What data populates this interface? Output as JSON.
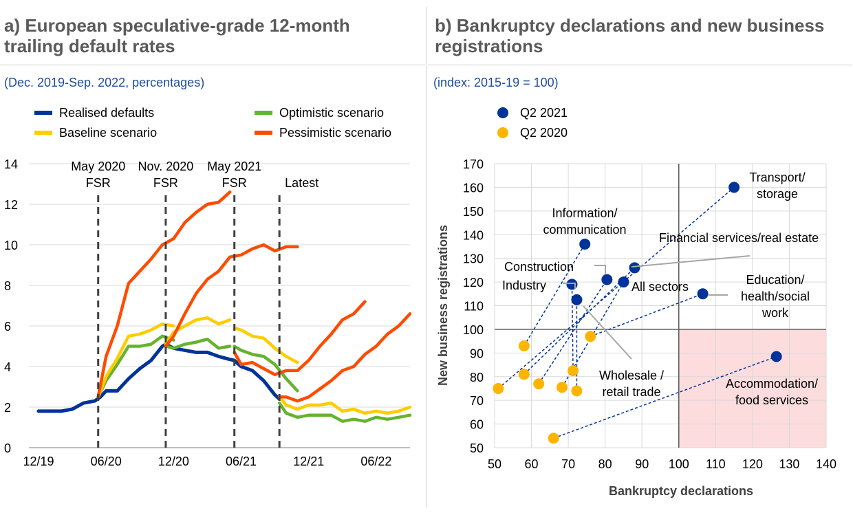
{
  "panel_a": {
    "title_line1": "a) European speculative-grade 12-month",
    "title_line2": "trailing default rates",
    "subtitle": "(Dec. 2019-Sep. 2022, percentages)"
  },
  "panel_b": {
    "title_line1": "b) Bankruptcy declarations and new business",
    "title_line2": "registrations",
    "subtitle": "(index: 2015-19 = 100)"
  },
  "chart_data": [
    {
      "type": "line",
      "title": "European speculative-grade 12-month trailing default rates",
      "ylim": [
        0,
        14
      ],
      "yticks": [
        "0",
        "2",
        "4",
        "6",
        "8",
        "10",
        "12",
        "14"
      ],
      "xticks": [
        "12/19",
        "06/20",
        "12/20",
        "06/21",
        "12/21",
        "06/22"
      ],
      "x_index_range": [
        0,
        33
      ],
      "xtick_index": [
        0,
        6,
        12,
        18,
        24,
        30
      ],
      "legend": [
        {
          "name": "Realised defaults",
          "color": "#003399"
        },
        {
          "name": "Optimistic scenario",
          "color": "#65b32e"
        },
        {
          "name": "Baseline scenario",
          "color": "#ffcc00"
        },
        {
          "name": "Pessimistic scenario",
          "color": "#ff4b00"
        }
      ],
      "vlines": [
        {
          "index": 5.3,
          "label_top": "May 2020",
          "label_bottom": "FSR"
        },
        {
          "index": 11.3,
          "label_top": "Nov. 2020",
          "label_bottom": "FSR"
        },
        {
          "index": 17.4,
          "label_top": "May 2021",
          "label_bottom": "FSR"
        },
        {
          "index": 21.4,
          "label_top": "",
          "label_bottom": "Latest"
        }
      ],
      "series": [
        {
          "name": "Realised defaults",
          "color": "#003399",
          "x": [
            0,
            1,
            2,
            3,
            4,
            5,
            5.5,
            6,
            7,
            8,
            9,
            10,
            11,
            11.3,
            12,
            13,
            14,
            15,
            16,
            17,
            17.4,
            18,
            19,
            20,
            21,
            21.4
          ],
          "y": [
            1.8,
            1.8,
            1.8,
            1.9,
            2.2,
            2.3,
            2.5,
            2.8,
            2.8,
            3.4,
            3.9,
            4.3,
            5.0,
            5.1,
            4.9,
            4.8,
            4.7,
            4.7,
            4.5,
            4.35,
            4.3,
            4.0,
            3.8,
            3.3,
            2.6,
            2.4
          ]
        },
        {
          "name": "Optimistic scenario 1",
          "color": "#65b32e",
          "x": [
            5.3,
            6,
            7,
            8,
            9,
            10,
            11,
            12
          ],
          "y": [
            2.5,
            3.3,
            4.1,
            5.0,
            5.0,
            5.1,
            5.5,
            5.3
          ]
        },
        {
          "name": "Optimistic scenario 2",
          "color": "#65b32e",
          "x": [
            11.3,
            12,
            13,
            14,
            15,
            16,
            17
          ],
          "y": [
            5.0,
            4.9,
            5.1,
            5.2,
            5.35,
            4.9,
            5.0
          ]
        },
        {
          "name": "Optimistic scenario 3",
          "color": "#65b32e",
          "x": [
            17.4,
            18,
            19,
            20,
            21,
            22,
            23
          ],
          "y": [
            5.0,
            4.8,
            4.6,
            4.5,
            4.1,
            3.4,
            2.8
          ]
        },
        {
          "name": "Optimistic scenario 4",
          "color": "#65b32e",
          "x": [
            21.4,
            22,
            23,
            24,
            25,
            26,
            27,
            28,
            29,
            30,
            31,
            32,
            33
          ],
          "y": [
            2.2,
            1.7,
            1.5,
            1.6,
            1.6,
            1.6,
            1.3,
            1.4,
            1.3,
            1.5,
            1.4,
            1.5,
            1.6
          ]
        },
        {
          "name": "Baseline scenario 1",
          "color": "#ffcc00",
          "x": [
            5.3,
            6,
            7,
            8,
            9,
            10,
            11,
            12
          ],
          "y": [
            2.5,
            3.5,
            4.4,
            5.5,
            5.6,
            5.8,
            6.1,
            6.0
          ]
        },
        {
          "name": "Baseline scenario 2",
          "color": "#ffcc00",
          "x": [
            11.3,
            12,
            13,
            14,
            15,
            16,
            17
          ],
          "y": [
            5.1,
            5.7,
            6.0,
            6.3,
            6.4,
            6.1,
            6.3
          ]
        },
        {
          "name": "Baseline scenario 3",
          "color": "#ffcc00",
          "x": [
            17.4,
            18,
            19,
            20,
            21,
            22,
            23
          ],
          "y": [
            5.9,
            5.8,
            5.5,
            5.4,
            4.9,
            4.5,
            4.2
          ]
        },
        {
          "name": "Baseline scenario 4",
          "color": "#ffcc00",
          "x": [
            21.4,
            22,
            23,
            24,
            25,
            26,
            27,
            28,
            29,
            30,
            31,
            32,
            33
          ],
          "y": [
            2.5,
            2.1,
            1.9,
            2.1,
            2.1,
            2.2,
            1.8,
            1.9,
            1.7,
            1.8,
            1.7,
            1.8,
            2.0
          ]
        },
        {
          "name": "Pessimistic scenario 1",
          "color": "#ff4b00",
          "x": [
            5.3,
            6,
            7,
            8,
            9,
            10,
            11,
            12,
            13,
            14,
            15,
            16,
            17
          ],
          "y": [
            2.5,
            4.5,
            6.0,
            8.1,
            8.7,
            9.3,
            10.0,
            10.3,
            11.1,
            11.6,
            12.0,
            12.1,
            12.6
          ]
        },
        {
          "name": "Pessimistic scenario 2",
          "color": "#ff4b00",
          "x": [
            11.3,
            12,
            13,
            14,
            15,
            16,
            17,
            18,
            19,
            20,
            21,
            22,
            23
          ],
          "y": [
            5.0,
            5.5,
            6.6,
            7.6,
            8.3,
            8.7,
            9.4,
            9.5,
            9.8,
            10.0,
            9.7,
            9.9,
            9.9
          ]
        },
        {
          "name": "Pessimistic scenario 3",
          "color": "#ff4b00",
          "x": [
            17.4,
            18,
            19,
            20,
            21,
            22,
            23,
            24,
            25,
            26,
            27,
            28,
            29
          ],
          "y": [
            4.7,
            4.1,
            4.2,
            3.9,
            3.6,
            3.8,
            3.8,
            4.3,
            5.0,
            5.6,
            6.3,
            6.6,
            7.2
          ]
        },
        {
          "name": "Pessimistic scenario 4",
          "color": "#ff4b00",
          "x": [
            21.4,
            22,
            23,
            24,
            25,
            26,
            27,
            28,
            29,
            30,
            31,
            32,
            33
          ],
          "y": [
            2.5,
            2.5,
            2.3,
            2.5,
            2.9,
            3.3,
            3.8,
            4.0,
            4.6,
            5.0,
            5.6,
            6.0,
            6.6
          ]
        }
      ]
    },
    {
      "type": "scatter",
      "title": "Bankruptcy declarations and new business registrations",
      "xlabel": "Bankruptcy declarations",
      "ylabel": "New business registrations",
      "xlim": [
        50,
        140
      ],
      "ylim": [
        50,
        170
      ],
      "xticks": [
        "50",
        "60",
        "70",
        "80",
        "90",
        "100",
        "110",
        "120",
        "130",
        "140"
      ],
      "yticks": [
        "50",
        "60",
        "70",
        "80",
        "90",
        "100",
        "110",
        "120",
        "130",
        "140",
        "150",
        "160",
        "170"
      ],
      "reference_lines": {
        "x": 100,
        "y": 100
      },
      "shaded_quadrant": {
        "x": [
          100,
          140
        ],
        "y": [
          50,
          100
        ],
        "color": "#fcdcdd"
      },
      "legend": [
        {
          "name": "Q2 2021",
          "color": "#003399"
        },
        {
          "name": "Q2 2020",
          "color": "#ffb400"
        }
      ],
      "sectors": [
        {
          "name": "Transport/storage",
          "label_lines": [
            "Transport/",
            "storage"
          ],
          "q2_2020": [
            51,
            75
          ],
          "q2_2021": [
            115,
            160
          ]
        },
        {
          "name": "Information/communication",
          "label_lines": [
            "Information/",
            "communication"
          ],
          "q2_2020": [
            58,
            93
          ],
          "q2_2021": [
            74.5,
            136
          ]
        },
        {
          "name": "Financial services/real estate",
          "label_lines": [
            "Financial services/real estate"
          ],
          "q2_2020": [
            58,
            81
          ],
          "q2_2021": [
            88,
            126
          ]
        },
        {
          "name": "Construction",
          "label_lines": [
            "Construction"
          ],
          "q2_2020": [
            62,
            77
          ],
          "q2_2021": [
            80.5,
            121
          ]
        },
        {
          "name": "Industry",
          "label_lines": [
            "Industry"
          ],
          "q2_2020": [
            71.3,
            82.5
          ],
          "q2_2021": [
            71,
            119
          ]
        },
        {
          "name": "All sectors",
          "label_lines": [
            "All sectors"
          ],
          "q2_2020": [
            68.3,
            75.5
          ],
          "q2_2021": [
            85,
            120
          ]
        },
        {
          "name": "Wholesale / retail trade",
          "label_lines": [
            "Wholesale /",
            "retail trade"
          ],
          "q2_2020": [
            72.3,
            74
          ],
          "q2_2021": [
            72.3,
            112.5
          ]
        },
        {
          "name": "Education/health/social work",
          "label_lines": [
            "Education/",
            "health/social",
            "work"
          ],
          "q2_2020": [
            76,
            97
          ],
          "q2_2021": [
            106.5,
            115
          ]
        },
        {
          "name": "Accommodation/food services",
          "label_lines": [
            "Accommodation/",
            "food services"
          ],
          "q2_2020": [
            66,
            54
          ],
          "q2_2021": [
            126.5,
            88.5
          ]
        }
      ]
    }
  ]
}
